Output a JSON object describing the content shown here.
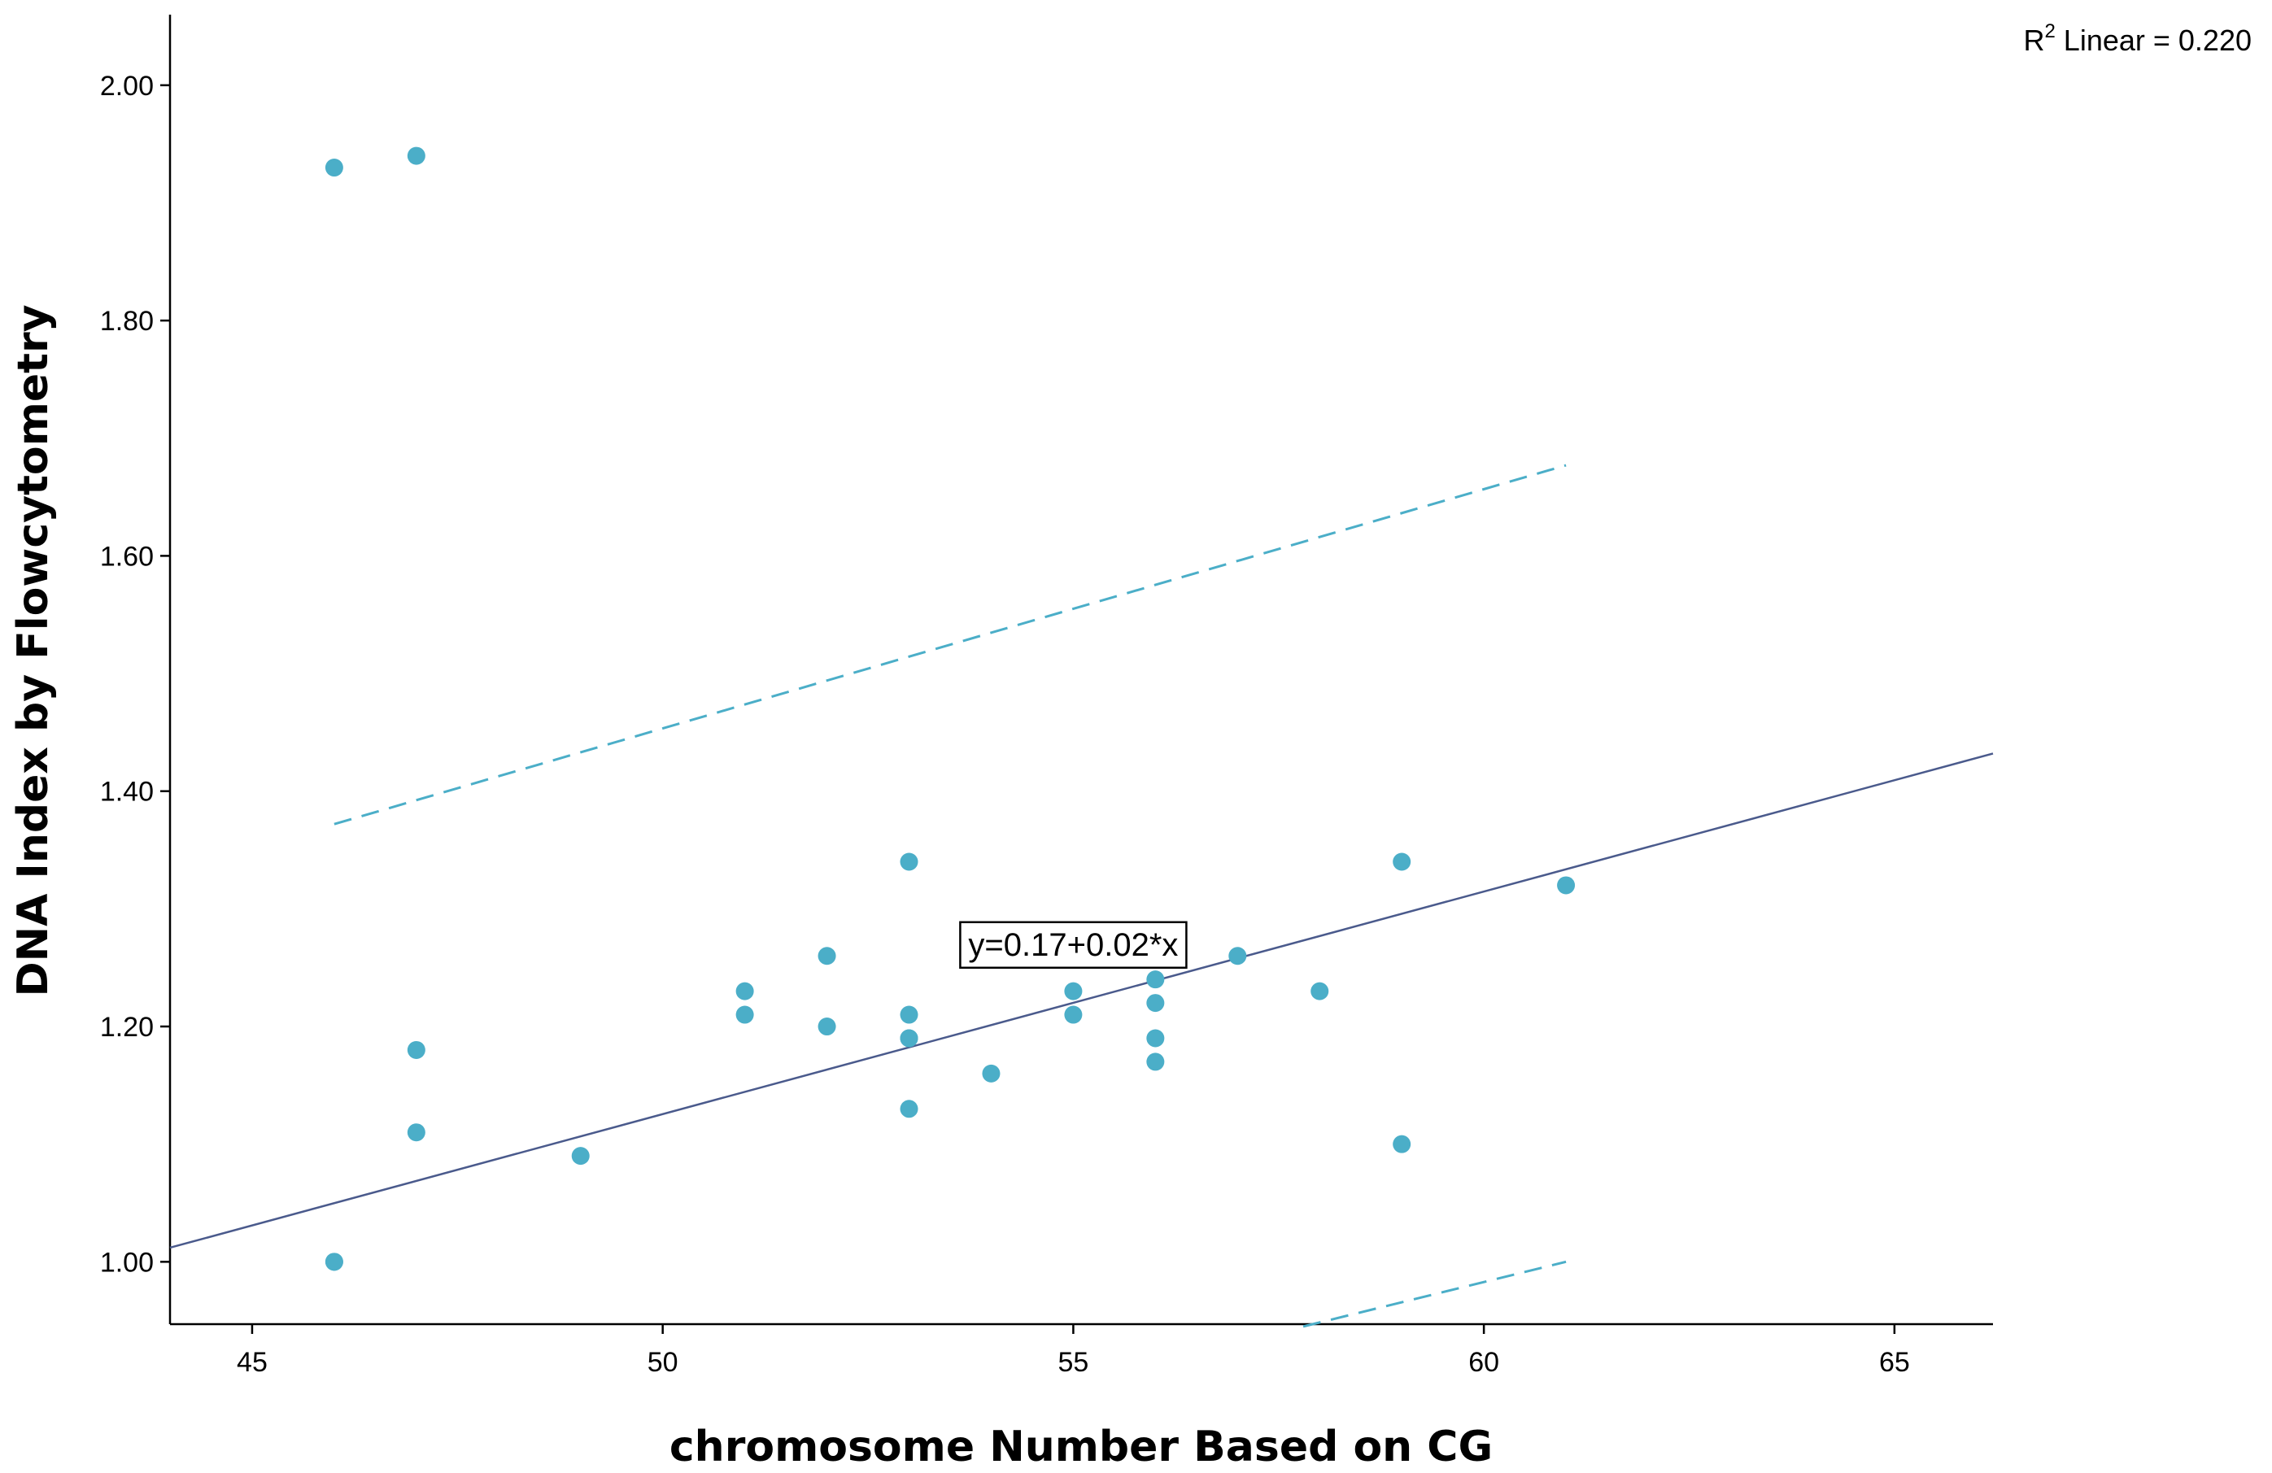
{
  "chart_data": {
    "type": "scatter",
    "xlabel": "chromosome Number Based on CG",
    "ylabel": "DNA Index by Flowcytometry",
    "xlim": [
      44,
      66.2
    ],
    "ylim": [
      0.947,
      2.06
    ],
    "x_ticks": [
      45,
      50,
      55,
      60,
      65
    ],
    "x_tick_labels": [
      "45",
      "50",
      "55",
      "60",
      "65"
    ],
    "y_ticks": [
      1.0,
      1.2,
      1.4,
      1.6,
      1.8,
      2.0
    ],
    "y_tick_labels": [
      "1.00",
      "1.20",
      "1.40",
      "1.60",
      "1.80",
      "2.00"
    ],
    "grid": false,
    "point_color": "#4BAEC8",
    "fit_line_color": "#4A5A8C",
    "ci_line_color": "#4BAEC8",
    "points": [
      {
        "x": 46,
        "y": 1.93
      },
      {
        "x": 47,
        "y": 1.94
      },
      {
        "x": 46,
        "y": 1.0
      },
      {
        "x": 46,
        "y": 1.0
      },
      {
        "x": 47,
        "y": 1.18
      },
      {
        "x": 47,
        "y": 1.11
      },
      {
        "x": 49,
        "y": 1.09
      },
      {
        "x": 51,
        "y": 1.23
      },
      {
        "x": 51,
        "y": 1.21
      },
      {
        "x": 52,
        "y": 1.26
      },
      {
        "x": 52,
        "y": 1.2
      },
      {
        "x": 53,
        "y": 1.34
      },
      {
        "x": 53,
        "y": 1.21
      },
      {
        "x": 53,
        "y": 1.19
      },
      {
        "x": 53,
        "y": 1.19
      },
      {
        "x": 53,
        "y": 1.13
      },
      {
        "x": 54,
        "y": 1.16
      },
      {
        "x": 55,
        "y": 1.23
      },
      {
        "x": 55,
        "y": 1.21
      },
      {
        "x": 56,
        "y": 1.24
      },
      {
        "x": 56,
        "y": 1.22
      },
      {
        "x": 56,
        "y": 1.19
      },
      {
        "x": 56,
        "y": 1.17
      },
      {
        "x": 57,
        "y": 1.26
      },
      {
        "x": 58,
        "y": 1.23
      },
      {
        "x": 59,
        "y": 1.34
      },
      {
        "x": 59,
        "y": 1.1
      },
      {
        "x": 61,
        "y": 1.32
      }
    ],
    "fit_line": {
      "x": [
        44,
        66.2
      ],
      "y": [
        1.012,
        1.432
      ]
    },
    "ci_upper": {
      "x": [
        46,
        61
      ],
      "y": [
        1.372,
        1.677
      ]
    },
    "ci_lower": {
      "x": [
        57.8,
        61
      ],
      "y": [
        0.945,
        1.0
      ]
    },
    "equation_label": "y=0.17+0.02*x",
    "equation_at": {
      "x": 55,
      "y": 1.27
    },
    "r2_prefix": "R",
    "r2_superscript": "2",
    "r2_text": " Linear = 0.220"
  }
}
